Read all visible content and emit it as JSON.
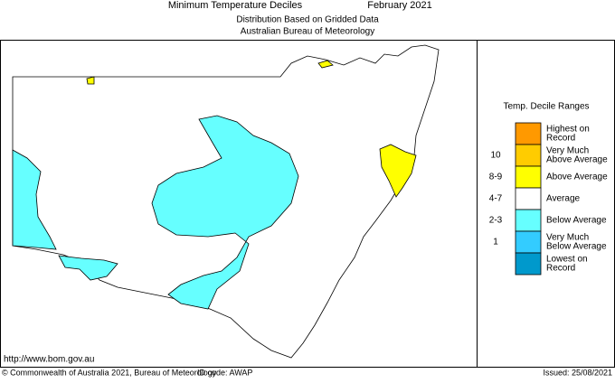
{
  "header": {
    "title": "Minimum Temperature Deciles",
    "period": "February 2021",
    "subtitle": [
      "Distribution Based on Gridded Data",
      "Australian Bureau of Meteorology"
    ]
  },
  "legend": {
    "title": "Temp. Decile Ranges",
    "items": [
      {
        "range": null,
        "label": [
          "Highest on",
          "Record"
        ],
        "color": "#ff9900"
      },
      {
        "range": "10",
        "label": [
          "Very Much",
          "Above Average"
        ],
        "color": "#ffcc00"
      },
      {
        "range": "8-9",
        "label": [
          "Above Average"
        ],
        "color": "#ffff00"
      },
      {
        "range": "4-7",
        "label": [
          "Average"
        ],
        "color": "#ffffff"
      },
      {
        "range": "2-3",
        "label": [
          "Below Average"
        ],
        "color": "#66ffff"
      },
      {
        "range": "1",
        "label": [
          "Very Much",
          "Below Average"
        ],
        "color": "#33ccff"
      },
      {
        "range": null,
        "label": [
          "Lowest on",
          "Record"
        ],
        "color": "#0099cc"
      }
    ]
  },
  "footer": {
    "url": "http://www.bom.gov.au",
    "copyright": "© Commonwealth of Australia 2021, Bureau of Meteorology",
    "id_code": "ID code: AWAP",
    "issued": "Issued: 25/08/2021"
  }
}
